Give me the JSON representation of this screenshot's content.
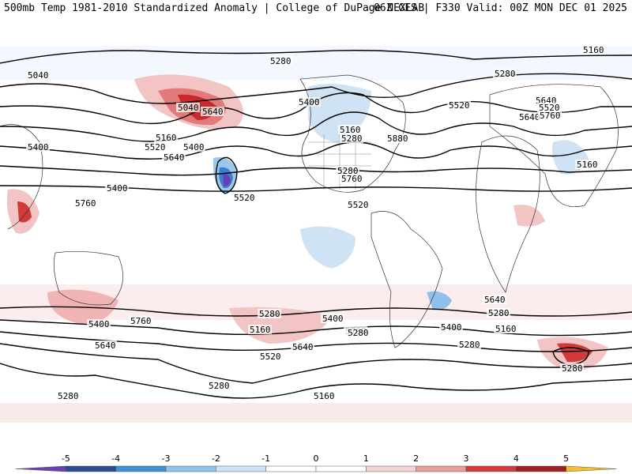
{
  "header": {
    "title_left": "500mb Temp 1981-2010 Standardized Anomaly | College of DuPage NEXLAB",
    "title_right": "06Z GFS | F330 Valid: 00Z MON DEC 01 2025"
  },
  "map": {
    "contour_labels": [
      "5280",
      "5160",
      "5040",
      "5280",
      "5400",
      "5520",
      "5640",
      "5160",
      "5040",
      "5640",
      "5160",
      "5280",
      "5400",
      "5520",
      "5640",
      "5760",
      "5880",
      "5760",
      "5400",
      "5160",
      "5280",
      "5400",
      "5520",
      "5640",
      "5760",
      "5520",
      "5640",
      "5400",
      "5280",
      "5760",
      "5640",
      "5520",
      "5400",
      "5280",
      "5160",
      "5280",
      "5160",
      "5760",
      "5640",
      "5520",
      "5280",
      "5400",
      "5280",
      "5160",
      "5280",
      "5280"
    ]
  },
  "colorbar": {
    "ticks": [
      "-5",
      "-4",
      "-3",
      "-2",
      "-1",
      "0",
      "1",
      "2",
      "3",
      "4",
      "5"
    ],
    "colors": [
      "#6a3fb5",
      "#2b4a8f",
      "#3c8fd8",
      "#8ec2ea",
      "#cfe3f5",
      "#ffffff",
      "#ffffff",
      "#f5d3d3",
      "#e89c9c",
      "#d23a3a",
      "#a01e1e",
      "#f5c02b"
    ]
  }
}
